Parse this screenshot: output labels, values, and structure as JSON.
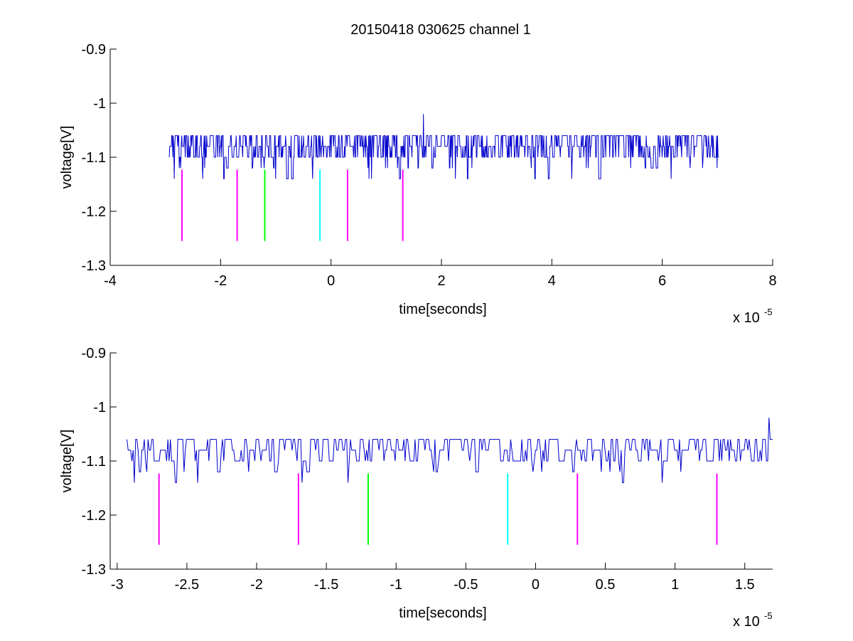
{
  "figure": {
    "title": "20150418 030625 channel 1"
  },
  "chart_data": [
    {
      "type": "line",
      "title": "20150418 030625 channel 1",
      "xlabel": "time[seconds]",
      "ylabel": "voltage[V]",
      "x_exponent_label": "x 10",
      "x_exponent": "-5",
      "xlim": [
        -4,
        8
      ],
      "ylim": [
        -1.3,
        -0.9
      ],
      "x_ticks": [
        -4,
        -2,
        0,
        2,
        4,
        6,
        8
      ],
      "x_tick_labels": [
        "-4",
        "-2",
        "0",
        "2",
        "4",
        "6",
        "8"
      ],
      "y_ticks": [
        -1.3,
        -1.2,
        -1.1,
        -1.0,
        -0.9
      ],
      "y_tick_labels": [
        "-1.3",
        "-1.2",
        "-1.1",
        "-1",
        "-0.9"
      ],
      "grid": false,
      "series": [
        {
          "color": "#0000cc",
          "x_range": [
            -2.93,
            7.02
          ],
          "levels": [
            -1.14,
            -1.12,
            -1.1,
            -1.08,
            -1.06
          ],
          "baseline": -1.1,
          "spike": {
            "x": 1.67,
            "y": -1.02
          }
        }
      ],
      "markers": [
        {
          "x": -2.7,
          "y_top": -1.123,
          "y_bottom": -1.255,
          "color": "#ff00ff"
        },
        {
          "x": -1.7,
          "y_top": -1.123,
          "y_bottom": -1.255,
          "color": "#ff00ff"
        },
        {
          "x": -1.2,
          "y_top": -1.123,
          "y_bottom": -1.255,
          "color": "#00ff00"
        },
        {
          "x": -0.2,
          "y_top": -1.123,
          "y_bottom": -1.255,
          "color": "#00ffff"
        },
        {
          "x": 0.3,
          "y_top": -1.123,
          "y_bottom": -1.255,
          "color": "#ff00ff"
        },
        {
          "x": 1.3,
          "y_top": -1.123,
          "y_bottom": -1.255,
          "color": "#ff00ff"
        }
      ]
    },
    {
      "type": "line",
      "title": "",
      "xlabel": "time[seconds]",
      "ylabel": "voltage[V]",
      "x_exponent_label": "x 10",
      "x_exponent": "-5",
      "xlim": [
        -3.05,
        1.7
      ],
      "ylim": [
        -1.3,
        -0.9
      ],
      "x_ticks": [
        -3,
        -2.5,
        -2,
        -1.5,
        -1,
        -0.5,
        0,
        0.5,
        1,
        1.5
      ],
      "x_tick_labels": [
        "-3",
        "-2.5",
        "-2",
        "-1.5",
        "-1",
        "-0.5",
        "0",
        "0.5",
        "1",
        "1.5"
      ],
      "y_ticks": [
        -1.3,
        -1.2,
        -1.1,
        -1.0,
        -0.9
      ],
      "y_tick_labels": [
        "-1.3",
        "-1.2",
        "-1.1",
        "-1",
        "-0.9"
      ],
      "grid": false,
      "series": [
        {
          "color": "#0000cc",
          "x_range": [
            -2.93,
            1.7
          ],
          "levels": [
            -1.14,
            -1.12,
            -1.1,
            -1.08,
            -1.06
          ],
          "baseline": -1.1,
          "spike": {
            "x": 1.67,
            "y": -1.02
          }
        }
      ],
      "markers": [
        {
          "x": -2.7,
          "y_top": -1.123,
          "y_bottom": -1.255,
          "color": "#ff00ff"
        },
        {
          "x": -1.7,
          "y_top": -1.123,
          "y_bottom": -1.255,
          "color": "#ff00ff"
        },
        {
          "x": -1.2,
          "y_top": -1.123,
          "y_bottom": -1.255,
          "color": "#00ff00"
        },
        {
          "x": -0.2,
          "y_top": -1.123,
          "y_bottom": -1.255,
          "color": "#00ffff"
        },
        {
          "x": 0.3,
          "y_top": -1.123,
          "y_bottom": -1.255,
          "color": "#ff00ff"
        },
        {
          "x": 1.3,
          "y_top": -1.123,
          "y_bottom": -1.255,
          "color": "#ff00ff"
        }
      ]
    }
  ]
}
